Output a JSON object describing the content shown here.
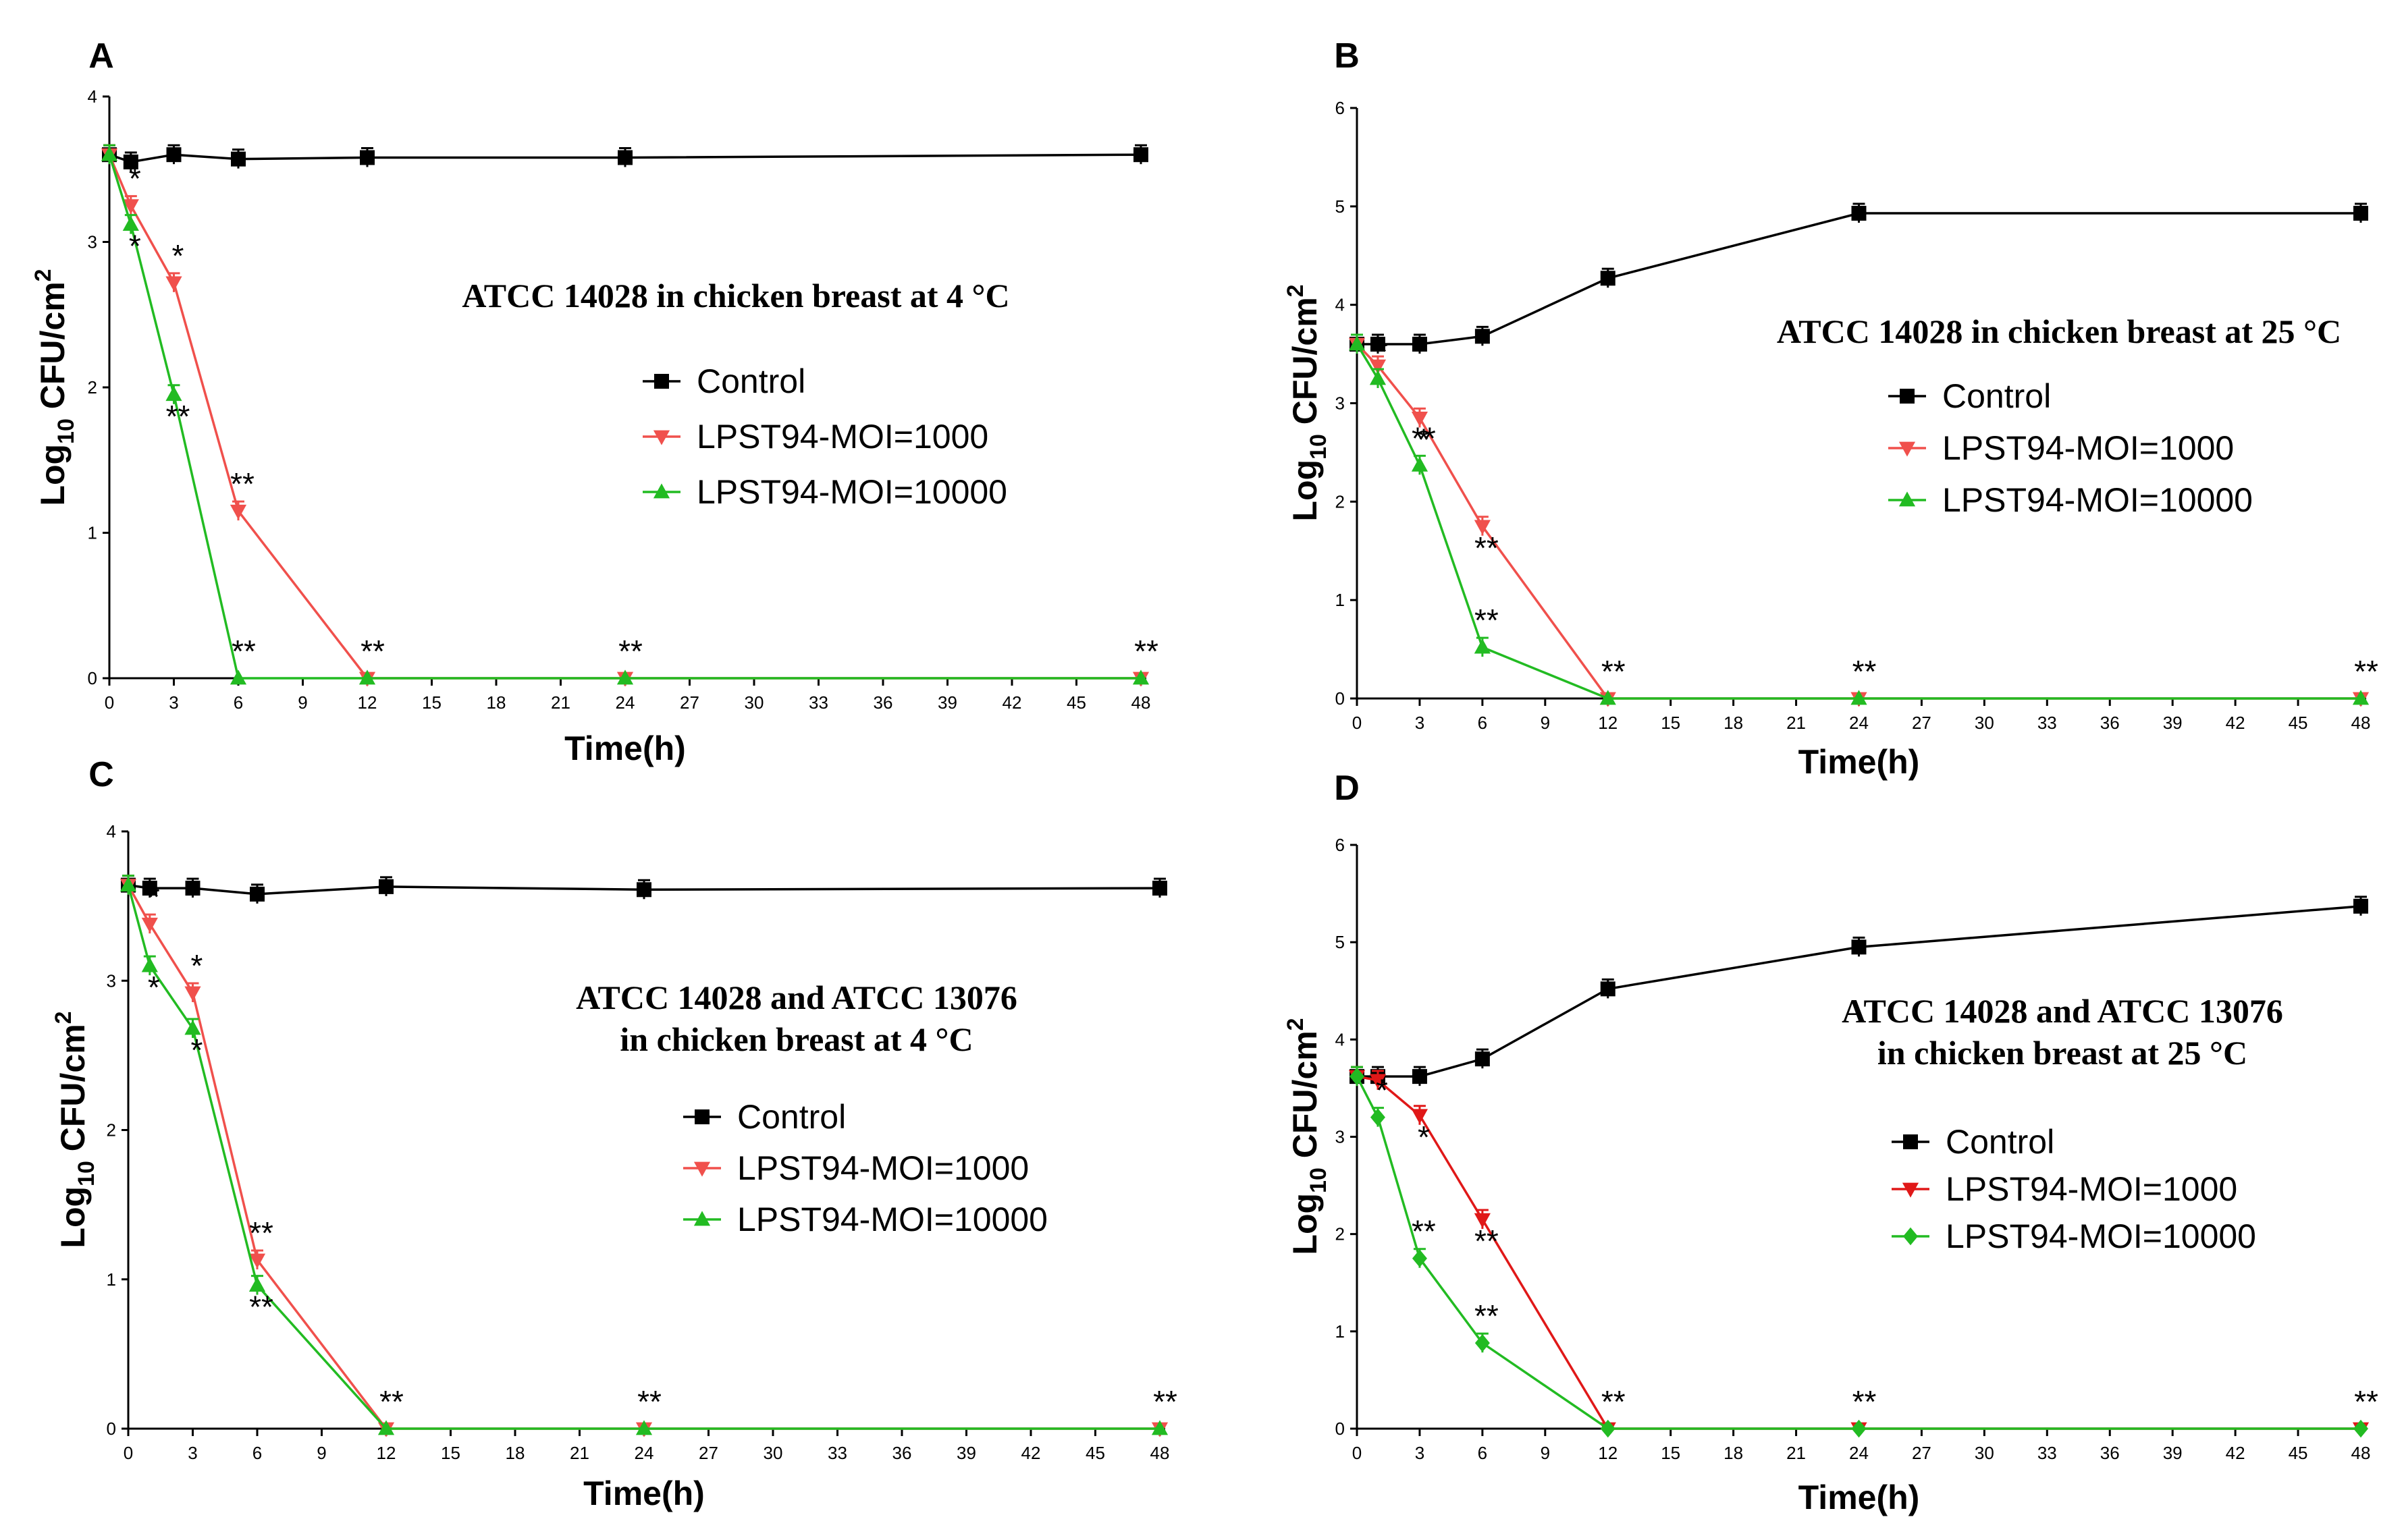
{
  "figure": {
    "shared": {
      "xlabel": "Time(h)",
      "ylabel_main": "Log",
      "ylabel_sub": "10",
      "ylabel_rest": " CFU/cm",
      "ylabel_sup": "2",
      "x_ticks": [
        0,
        3,
        6,
        9,
        12,
        15,
        18,
        21,
        24,
        27,
        30,
        33,
        36,
        39,
        42,
        45,
        48
      ],
      "series_colors": {
        "Control": "#000000",
        "LPST94-MOI=1000": "#f0504c",
        "LPST94-MOI=10000": "#22bb22"
      }
    }
  },
  "chart_data": [
    {
      "panel": "A",
      "type": "line",
      "title": "ATCC 14028 in chicken breast at 4 °C",
      "title_lines": [
        "ATCC 14028 in chicken breast at 4 °C"
      ],
      "xlabel": "Time(h)",
      "ylabel": "Log10 CFU/cm2",
      "xlim": [
        0,
        48
      ],
      "ylim": [
        0,
        4
      ],
      "y_ticks": [
        0,
        1,
        2,
        3,
        4
      ],
      "x_ticks": [
        0,
        3,
        6,
        9,
        12,
        15,
        18,
        21,
        24,
        27,
        30,
        33,
        36,
        39,
        42,
        45,
        48
      ],
      "legend": [
        "Control",
        "LPST94-MOI=1000",
        "LPST94-MOI=10000"
      ],
      "series": [
        {
          "name": "Control",
          "color": "#000000",
          "marker": "square",
          "x": [
            0,
            1,
            3,
            6,
            12,
            24,
            48
          ],
          "y": [
            3.6,
            3.55,
            3.6,
            3.57,
            3.58,
            3.58,
            3.6
          ]
        },
        {
          "name": "LPST94-MOI=1000",
          "color": "#f0504c",
          "marker": "triangle-down",
          "x": [
            0,
            1,
            3,
            6,
            12,
            24,
            48
          ],
          "y": [
            3.6,
            3.25,
            2.72,
            1.15,
            0,
            0,
            0
          ]
        },
        {
          "name": "LPST94-MOI=10000",
          "color": "#22bb22",
          "marker": "triangle-up",
          "x": [
            0,
            1,
            3,
            6,
            12,
            24,
            48
          ],
          "y": [
            3.6,
            3.12,
            1.95,
            0,
            0,
            0,
            0
          ]
        }
      ],
      "annotations": [
        {
          "text": "*",
          "x": 1,
          "y": 3.25
        },
        {
          "text": "*",
          "x": 1,
          "y": 3.12
        },
        {
          "text": "*",
          "x": 3,
          "y": 2.72
        },
        {
          "text": "**",
          "x": 3,
          "y": 1.95
        },
        {
          "text": "**",
          "x": 6,
          "y": 1.15
        },
        {
          "text": "**",
          "x": 6,
          "y": 0
        },
        {
          "text": "**",
          "x": 12,
          "y": 0
        },
        {
          "text": "**",
          "x": 24,
          "y": 0
        },
        {
          "text": "**",
          "x": 48,
          "y": 0
        }
      ]
    },
    {
      "panel": "B",
      "type": "line",
      "title": "ATCC 14028 in chicken breast at 25 °C",
      "title_lines": [
        "ATCC 14028 in chicken breast at 25 °C"
      ],
      "xlabel": "Time(h)",
      "ylabel": "Log10 CFU/cm2",
      "xlim": [
        0,
        48
      ],
      "ylim": [
        0,
        6
      ],
      "y_ticks": [
        0,
        1,
        2,
        3,
        4,
        5,
        6
      ],
      "x_ticks": [
        0,
        3,
        6,
        9,
        12,
        15,
        18,
        21,
        24,
        27,
        30,
        33,
        36,
        39,
        42,
        45,
        48
      ],
      "legend": [
        "Control",
        "LPST94-MOI=1000",
        "LPST94-MOI=10000"
      ],
      "series": [
        {
          "name": "Control",
          "color": "#000000",
          "marker": "square",
          "x": [
            0,
            1,
            3,
            6,
            12,
            24,
            48
          ],
          "y": [
            3.6,
            3.6,
            3.6,
            3.68,
            4.27,
            4.93,
            4.93
          ]
        },
        {
          "name": "LPST94-MOI=1000",
          "color": "#f0504c",
          "marker": "triangle-down",
          "x": [
            0,
            1,
            3,
            6,
            12,
            24,
            48
          ],
          "y": [
            3.6,
            3.38,
            2.85,
            1.75,
            0,
            0,
            0
          ]
        },
        {
          "name": "LPST94-MOI=10000",
          "color": "#22bb22",
          "marker": "triangle-up",
          "x": [
            0,
            1,
            3,
            6,
            12,
            24,
            48
          ],
          "y": [
            3.6,
            3.25,
            2.37,
            0.52,
            0,
            0,
            0
          ]
        }
      ],
      "annotations": [
        {
          "text": "*",
          "x": 1,
          "y": 3.25
        },
        {
          "text": "*",
          "x": 3,
          "y": 2.85
        },
        {
          "text": "**",
          "x": 3,
          "y": 2.37
        },
        {
          "text": "**",
          "x": 6,
          "y": 1.75
        },
        {
          "text": "**",
          "x": 6,
          "y": 0.52
        },
        {
          "text": "**",
          "x": 12,
          "y": 0
        },
        {
          "text": "**",
          "x": 24,
          "y": 0
        },
        {
          "text": "**",
          "x": 48,
          "y": 0
        }
      ]
    },
    {
      "panel": "C",
      "type": "line",
      "title": "ATCC 14028 and ATCC 13076 in chicken breast at 4 °C",
      "title_lines": [
        "ATCC 14028 and ATCC 13076",
        "in chicken breast at 4 °C"
      ],
      "xlabel": "Time(h)",
      "ylabel": "Log10 CFU/cm2",
      "xlim": [
        0,
        48
      ],
      "ylim": [
        0,
        4
      ],
      "y_ticks": [
        0,
        1,
        2,
        3,
        4
      ],
      "x_ticks": [
        0,
        3,
        6,
        9,
        12,
        15,
        18,
        21,
        24,
        27,
        30,
        33,
        36,
        39,
        42,
        45,
        48
      ],
      "legend": [
        "Control",
        "LPST94-MOI=1000",
        "LPST94-MOI=10000"
      ],
      "series": [
        {
          "name": "Control",
          "color": "#000000",
          "marker": "square",
          "x": [
            0,
            1,
            3,
            6,
            12,
            24,
            48
          ],
          "y": [
            3.64,
            3.62,
            3.62,
            3.58,
            3.63,
            3.61,
            3.62
          ]
        },
        {
          "name": "LPST94-MOI=1000",
          "color": "#f0504c",
          "marker": "triangle-down",
          "x": [
            0,
            1,
            3,
            6,
            12,
            24,
            48
          ],
          "y": [
            3.64,
            3.38,
            2.92,
            1.13,
            0,
            0,
            0
          ]
        },
        {
          "name": "LPST94-MOI=10000",
          "color": "#22bb22",
          "marker": "triangle-up",
          "x": [
            0,
            1,
            3,
            6,
            12,
            24,
            48
          ],
          "y": [
            3.64,
            3.1,
            2.68,
            0.96,
            0,
            0,
            0
          ]
        }
      ],
      "annotations": [
        {
          "text": "*",
          "x": 1,
          "y": 3.38
        },
        {
          "text": "*",
          "x": 1,
          "y": 3.1
        },
        {
          "text": "*",
          "x": 3,
          "y": 2.92
        },
        {
          "text": "*",
          "x": 3,
          "y": 2.68
        },
        {
          "text": "**",
          "x": 6,
          "y": 1.13
        },
        {
          "text": "**",
          "x": 6,
          "y": 0.96
        },
        {
          "text": "**",
          "x": 12,
          "y": 0
        },
        {
          "text": "**",
          "x": 24,
          "y": 0
        },
        {
          "text": "**",
          "x": 48,
          "y": 0
        }
      ]
    },
    {
      "panel": "D",
      "type": "line",
      "title": "ATCC 14028 and ATCC 13076 in chicken breast at 25 °C",
      "title_lines": [
        "ATCC 14028 and ATCC 13076",
        "in chicken breast at 25 °C"
      ],
      "xlabel": "Time(h)",
      "ylabel": "Log10 CFU/cm2",
      "xlim": [
        0,
        48
      ],
      "ylim": [
        0,
        6
      ],
      "y_ticks": [
        0,
        1,
        2,
        3,
        4,
        5,
        6
      ],
      "x_ticks": [
        0,
        3,
        6,
        9,
        12,
        15,
        18,
        21,
        24,
        27,
        30,
        33,
        36,
        39,
        42,
        45,
        48
      ],
      "legend": [
        "Control",
        "LPST94-MOI=1000",
        "LPST94-MOI=10000"
      ],
      "series": [
        {
          "name": "Control",
          "color": "#000000",
          "marker": "square",
          "x": [
            0,
            1,
            3,
            6,
            12,
            24,
            48
          ],
          "y": [
            3.62,
            3.62,
            3.62,
            3.8,
            4.52,
            4.95,
            5.37
          ]
        },
        {
          "name": "LPST94-MOI=1000",
          "color": "#e01818",
          "marker": "triangle-down",
          "x": [
            0,
            1,
            3,
            6,
            12,
            24,
            48
          ],
          "y": [
            3.62,
            3.58,
            3.22,
            2.15,
            0,
            0,
            0
          ]
        },
        {
          "name": "LPST94-MOI=10000",
          "color": "#22bb22",
          "marker": "diamond",
          "x": [
            0,
            1,
            3,
            6,
            12,
            24,
            48
          ],
          "y": [
            3.62,
            3.2,
            1.75,
            0.88,
            0,
            0,
            0
          ]
        }
      ],
      "annotations": [
        {
          "text": "*",
          "x": 1,
          "y": 3.2
        },
        {
          "text": "*",
          "x": 3,
          "y": 3.22
        },
        {
          "text": "**",
          "x": 3,
          "y": 1.75
        },
        {
          "text": "**",
          "x": 6,
          "y": 2.15
        },
        {
          "text": "**",
          "x": 6,
          "y": 0.88
        },
        {
          "text": "**",
          "x": 12,
          "y": 0
        },
        {
          "text": "**",
          "x": 24,
          "y": 0
        },
        {
          "text": "**",
          "x": 48,
          "y": 0
        }
      ]
    }
  ]
}
